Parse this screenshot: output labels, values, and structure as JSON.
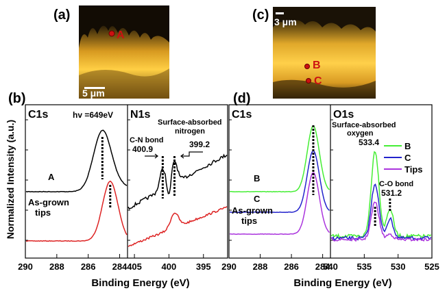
{
  "panel_labels": {
    "a": "(a)",
    "b": "(b)",
    "c": "(c)",
    "d": "(d)"
  },
  "images": {
    "a": {
      "scale_bar": "5 μm",
      "points": [
        "A"
      ]
    },
    "c": {
      "scale_bar": "3 μm",
      "points": [
        "B",
        "C"
      ]
    }
  },
  "annotations": {
    "b_c1s_title": "C1s",
    "b_hv": "hv =649eV",
    "b_n1s_title": "N1s",
    "b_curve_A": "A",
    "b_asgrown_1": "As-grown",
    "b_asgrown_2": "tips",
    "b_surface_n_1": "Surface-absorbed",
    "b_surface_n_2": "nitrogen",
    "b_cn_bond": "C-N bond",
    "b_peak_400_9": "400.9",
    "b_peak_399_2": "399.2",
    "d_c1s_title": "C1s",
    "d_o1s_title": "O1s",
    "d_curve_B": "B",
    "d_curve_C": "C",
    "d_asgrown_1": "As-grown",
    "d_asgrown_2": "tips",
    "d_surface_o_1": "Surface-absorbed",
    "d_surface_o_2": "oxygen",
    "d_peak_533_4": "533.4",
    "d_co_bond": "C-O bond",
    "d_peak_531_2": "531.2"
  },
  "axes": {
    "ylabel": "Normalized Intensity (a.u.)",
    "xlabel_left": "Binding Energy (eV)",
    "xlabel_right": "Binding Energy (eV)"
  },
  "legend": [
    {
      "name": "B",
      "color": "#44ee33"
    },
    {
      "name": "C",
      "color": "#2222cc"
    },
    {
      "name": "Tips",
      "color": "#aa33dd"
    }
  ],
  "chart_data": [
    {
      "type": "line",
      "panel": "b",
      "title": "C1s",
      "xlim": [
        290,
        283.5
      ],
      "x_ticks": [
        "290",
        "288",
        "286",
        "284"
      ],
      "series": [
        {
          "name": "A",
          "color": "#000000",
          "peak_x": 285.1
        },
        {
          "name": "As-grown tips",
          "color": "#dd2222",
          "peak_x": 284.6
        }
      ]
    },
    {
      "type": "line",
      "panel": "b",
      "title": "N1s",
      "xlim": [
        406,
        391.5
      ],
      "x_ticks": [
        "405",
        "400",
        "395"
      ],
      "series": [
        {
          "name": "A",
          "color": "#000000",
          "peaks_x": [
            400.9,
            399.2
          ]
        },
        {
          "name": "As-grown tips",
          "color": "#dd2222",
          "peaks_x": [
            399.2
          ]
        }
      ]
    },
    {
      "type": "line",
      "panel": "d",
      "title": "C1s",
      "xlim": [
        290,
        283.5
      ],
      "x_ticks": [
        "290",
        "288",
        "286",
        "284"
      ],
      "series": [
        {
          "name": "B",
          "color": "#44ee33",
          "peak_x": 284.6
        },
        {
          "name": "C",
          "color": "#2222cc",
          "peak_x": 284.6
        },
        {
          "name": "As-grown tips",
          "color": "#aa33dd",
          "peak_x": 284.6
        }
      ]
    },
    {
      "type": "line",
      "panel": "d",
      "title": "O1s",
      "xlim": [
        540,
        525
      ],
      "x_ticks": [
        "540",
        "535",
        "530",
        "525"
      ],
      "series": [
        {
          "name": "B",
          "color": "#44ee33",
          "peaks_x": [
            533.4,
            531.2
          ]
        },
        {
          "name": "C",
          "color": "#2222cc",
          "peaks_x": [
            533.4,
            531.2
          ]
        },
        {
          "name": "Tips",
          "color": "#aa33dd",
          "peaks_x": [
            533.4
          ]
        }
      ]
    }
  ]
}
